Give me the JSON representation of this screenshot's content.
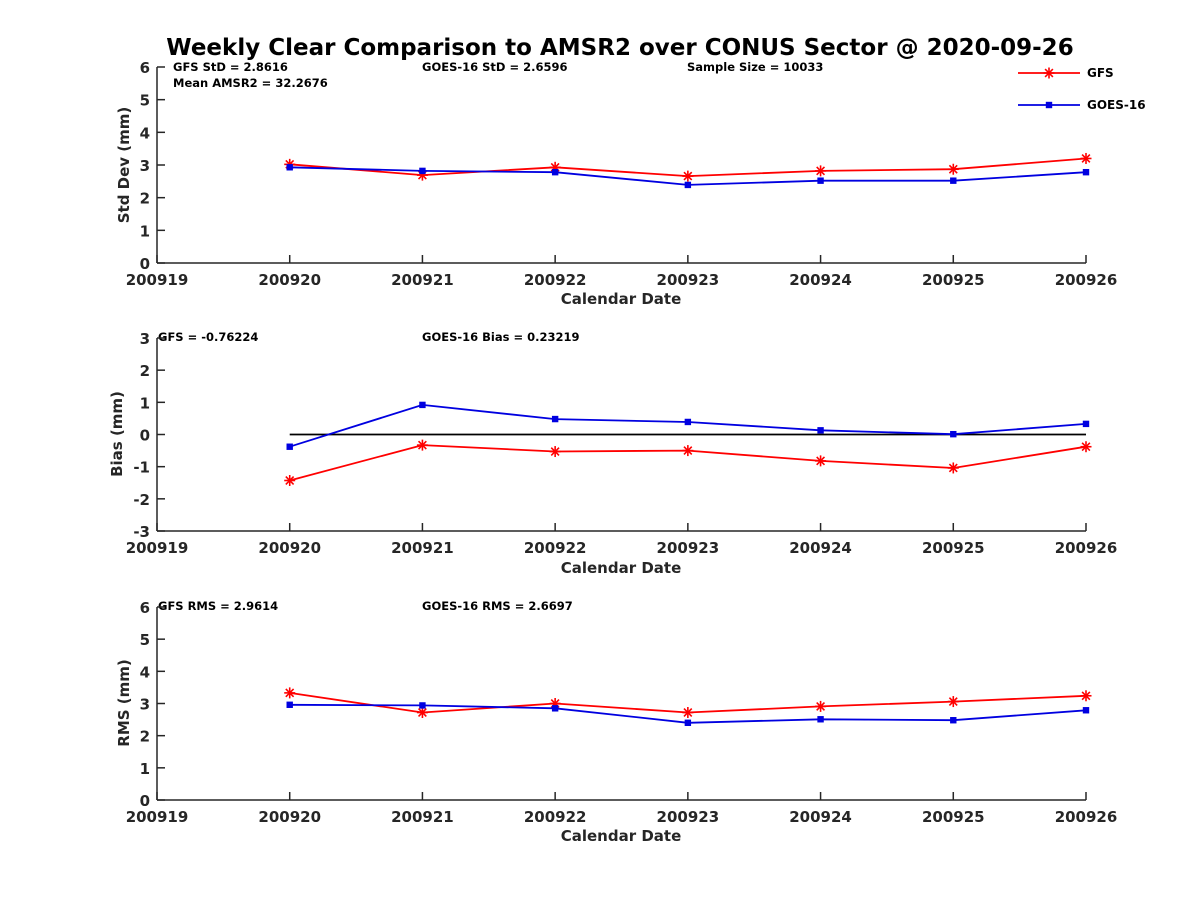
{
  "title": "Weekly Clear Comparison to AMSR2 over CONUS Sector @ 2020-09-26",
  "colors": {
    "gfs": "#ff0000",
    "goes": "#0000e0",
    "zero_line": "#000000"
  },
  "legend": {
    "placement": "top-right",
    "items": [
      {
        "label": "GFS",
        "color": "#ff0000",
        "marker": "asterisk"
      },
      {
        "label": "GOES-16",
        "color": "#0000e0",
        "marker": "square"
      }
    ]
  },
  "chart_data": [
    {
      "type": "line",
      "xlabel": "Calendar Date",
      "ylabel": "Std Dev (mm)",
      "x_ticks": [
        "200919",
        "200920",
        "200921",
        "200922",
        "200923",
        "200924",
        "200925",
        "200926"
      ],
      "xlim": [
        "200919",
        "200926"
      ],
      "ylim": [
        0,
        6
      ],
      "y_ticks": [
        0,
        1,
        2,
        3,
        4,
        5,
        6
      ],
      "categories": [
        "200920",
        "200921",
        "200922",
        "200923",
        "200924",
        "200925",
        "200926"
      ],
      "series": [
        {
          "name": "GFS",
          "values": [
            3.02,
            2.69,
            2.93,
            2.66,
            2.82,
            2.87,
            3.2
          ]
        },
        {
          "name": "GOES-16",
          "values": [
            2.93,
            2.82,
            2.78,
            2.39,
            2.52,
            2.52,
            2.78
          ]
        }
      ],
      "annotations": [
        "GFS StD = 2.8616",
        "GOES-16 StD = 2.6596",
        "Sample Size = 10033",
        "Mean AMSR2 = 32.2676"
      ],
      "zero_line": false
    },
    {
      "type": "line",
      "xlabel": "Calendar Date",
      "ylabel": "Bias (mm)",
      "x_ticks": [
        "200919",
        "200920",
        "200921",
        "200922",
        "200923",
        "200924",
        "200925",
        "200926"
      ],
      "xlim": [
        "200919",
        "200926"
      ],
      "ylim": [
        -3,
        3
      ],
      "y_ticks": [
        -3,
        -2,
        -1,
        0,
        1,
        2,
        3
      ],
      "categories": [
        "200920",
        "200921",
        "200922",
        "200923",
        "200924",
        "200925",
        "200926"
      ],
      "series": [
        {
          "name": "GFS",
          "values": [
            -1.43,
            -0.33,
            -0.53,
            -0.5,
            -0.82,
            -1.04,
            -0.38
          ]
        },
        {
          "name": "GOES-16",
          "values": [
            -0.38,
            0.92,
            0.48,
            0.39,
            0.13,
            0.01,
            0.33
          ]
        }
      ],
      "annotations": [
        "GFS = -0.76224",
        "GOES-16 Bias  = 0.23219"
      ],
      "zero_line": true
    },
    {
      "type": "line",
      "xlabel": "Calendar Date",
      "ylabel": "RMS (mm)",
      "x_ticks": [
        "200919",
        "200920",
        "200921",
        "200922",
        "200923",
        "200924",
        "200925",
        "200926"
      ],
      "xlim": [
        "200919",
        "200926"
      ],
      "ylim": [
        0,
        6
      ],
      "y_ticks": [
        0,
        1,
        2,
        3,
        4,
        5,
        6
      ],
      "categories": [
        "200920",
        "200921",
        "200922",
        "200923",
        "200924",
        "200925",
        "200926"
      ],
      "series": [
        {
          "name": "GFS",
          "values": [
            3.33,
            2.72,
            3.0,
            2.72,
            2.91,
            3.06,
            3.24
          ]
        },
        {
          "name": "GOES-16",
          "values": [
            2.96,
            2.94,
            2.85,
            2.4,
            2.51,
            2.48,
            2.79
          ]
        }
      ],
      "annotations": [
        "GFS RMS = 2.9614",
        "GOES-16 RMS = 2.6697"
      ],
      "zero_line": false
    }
  ]
}
